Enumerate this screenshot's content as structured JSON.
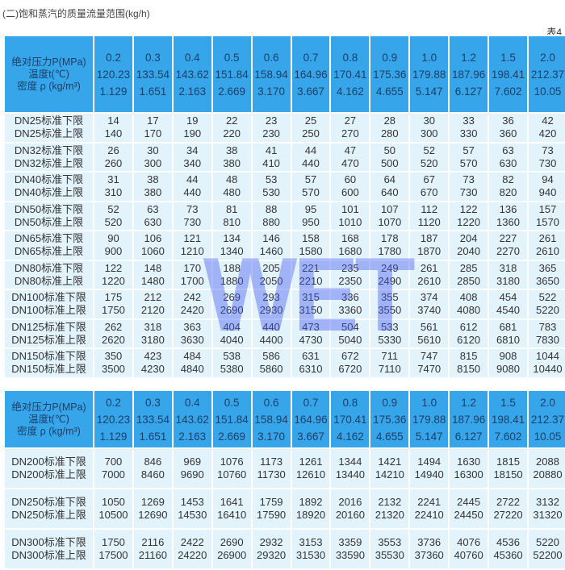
{
  "title": "(二)饱和蒸汽的质量流量范围(kg/h)",
  "table_no": "表4",
  "watermark": "WET",
  "header": {
    "label_lines": [
      "绝对压力P(MPa)",
      "温度t(℃)",
      "密度 ρ (kg/m³)"
    ],
    "pressure": [
      "0.2",
      "0.3",
      "0.4",
      "0.5",
      "0.6",
      "0.7",
      "0.8",
      "0.9",
      "1.0",
      "1.2",
      "1.5",
      "2.0"
    ],
    "temperature": [
      "120.23",
      "133.54",
      "143.62",
      "151.84",
      "158.94",
      "164.96",
      "170.41",
      "175.36",
      "179.88",
      "187.96",
      "198.41",
      "212.37"
    ],
    "density": [
      "1.129",
      "1.651",
      "2.163",
      "2.669",
      "3.170",
      "3.667",
      "4.162",
      "4.655",
      "5.147",
      "6.127",
      "7.602",
      "10.05"
    ]
  },
  "table1": [
    {
      "lower_label": "DN25标准下限",
      "upper_label": "DN25标准上限",
      "lower": [
        "14",
        "17",
        "19",
        "22",
        "23",
        "25",
        "27",
        "28",
        "30",
        "33",
        "36",
        "42"
      ],
      "upper": [
        "140",
        "170",
        "190",
        "220",
        "230",
        "250",
        "270",
        "280",
        "300",
        "330",
        "360",
        "420"
      ]
    },
    {
      "lower_label": "DN32标准下限",
      "upper_label": "DN32标准上限",
      "lower": [
        "26",
        "30",
        "34",
        "38",
        "41",
        "44",
        "47",
        "50",
        "52",
        "57",
        "63",
        "73"
      ],
      "upper": [
        "260",
        "300",
        "340",
        "380",
        "410",
        "440",
        "470",
        "500",
        "520",
        "570",
        "630",
        "730"
      ]
    },
    {
      "lower_label": "DN40标准下限",
      "upper_label": "DN40标准上限",
      "lower": [
        "31",
        "38",
        "44",
        "48",
        "53",
        "57",
        "60",
        "64",
        "67",
        "73",
        "82",
        "94"
      ],
      "upper": [
        "310",
        "380",
        "440",
        "480",
        "530",
        "570",
        "600",
        "640",
        "670",
        "730",
        "820",
        "940"
      ]
    },
    {
      "lower_label": "DN50标准下限",
      "upper_label": "DN50标准上限",
      "lower": [
        "52",
        "63",
        "73",
        "81",
        "88",
        "95",
        "101",
        "107",
        "112",
        "122",
        "136",
        "157"
      ],
      "upper": [
        "520",
        "630",
        "730",
        "810",
        "880",
        "950",
        "1010",
        "1070",
        "1120",
        "1220",
        "1360",
        "1570"
      ]
    },
    {
      "lower_label": "DN65标准下限",
      "upper_label": "DN65标准上限",
      "lower": [
        "90",
        "106",
        "121",
        "134",
        "146",
        "158",
        "168",
        "178",
        "187",
        "204",
        "227",
        "261"
      ],
      "upper": [
        "900",
        "1060",
        "1210",
        "1340",
        "1460",
        "1580",
        "1680",
        "1780",
        "1870",
        "2040",
        "2270",
        "2610"
      ]
    },
    {
      "lower_label": "DN80标准下限",
      "upper_label": "DN80标准上限",
      "lower": [
        "122",
        "148",
        "170",
        "188",
        "205",
        "221",
        "235",
        "249",
        "261",
        "285",
        "318",
        "365"
      ],
      "upper": [
        "1220",
        "1480",
        "1700",
        "1880",
        "2050",
        "2210",
        "2350",
        "2490",
        "2610",
        "2850",
        "3180",
        "3650"
      ]
    },
    {
      "lower_label": "DN100标准下限",
      "upper_label": "DN100标准上限",
      "lower": [
        "175",
        "212",
        "242",
        "269",
        "293",
        "315",
        "336",
        "355",
        "374",
        "408",
        "454",
        "522"
      ],
      "upper": [
        "1750",
        "2120",
        "2420",
        "2690",
        "2930",
        "3150",
        "3360",
        "3550",
        "3740",
        "4080",
        "4540",
        "5220"
      ]
    },
    {
      "lower_label": "DN125标准下限",
      "upper_label": "DN125标准上限",
      "lower": [
        "262",
        "318",
        "363",
        "404",
        "440",
        "473",
        "504",
        "533",
        "561",
        "612",
        "681",
        "783"
      ],
      "upper": [
        "2620",
        "3180",
        "3630",
        "4040",
        "4400",
        "4730",
        "5040",
        "5330",
        "5610",
        "6120",
        "6810",
        "7830"
      ]
    },
    {
      "lower_label": "DN150标准下限",
      "upper_label": "DN150标准上限",
      "lower": [
        "350",
        "423",
        "484",
        "538",
        "586",
        "631",
        "672",
        "711",
        "747",
        "815",
        "908",
        "1044"
      ],
      "upper": [
        "3500",
        "4230",
        "4840",
        "5380",
        "5860",
        "6310",
        "6720",
        "7110",
        "7470",
        "8150",
        "9080",
        "10440"
      ]
    }
  ],
  "table2": [
    {
      "lower_label": "DN200标准下限",
      "upper_label": "DN200标准上限",
      "lower": [
        "700",
        "846",
        "969",
        "1076",
        "1173",
        "1261",
        "1344",
        "1421",
        "1494",
        "1630",
        "1815",
        "2088"
      ],
      "upper": [
        "7000",
        "8460",
        "9690",
        "10760",
        "11730",
        "12610",
        "13440",
        "14210",
        "14940",
        "16300",
        "18150",
        "20880"
      ]
    },
    {
      "lower_label": "DN250标准下限",
      "upper_label": "DN250标准上限",
      "lower": [
        "1050",
        "1269",
        "1453",
        "1641",
        "1759",
        "1892",
        "2016",
        "2132",
        "2241",
        "2445",
        "2722",
        "3132"
      ],
      "upper": [
        "10500",
        "12690",
        "14530",
        "16410",
        "17590",
        "18920",
        "20160",
        "21320",
        "22410",
        "24450",
        "27220",
        "31320"
      ]
    },
    {
      "lower_label": "DN300标准下限",
      "upper_label": "DN300标准上限",
      "lower": [
        "1750",
        "2116",
        "2422",
        "2690",
        "2932",
        "3153",
        "3359",
        "3553",
        "3736",
        "4076",
        "4536",
        "5220"
      ],
      "upper": [
        "17500",
        "21160",
        "24220",
        "26900",
        "29320",
        "31530",
        "33590",
        "35530",
        "37360",
        "40760",
        "45360",
        "52200"
      ]
    }
  ]
}
